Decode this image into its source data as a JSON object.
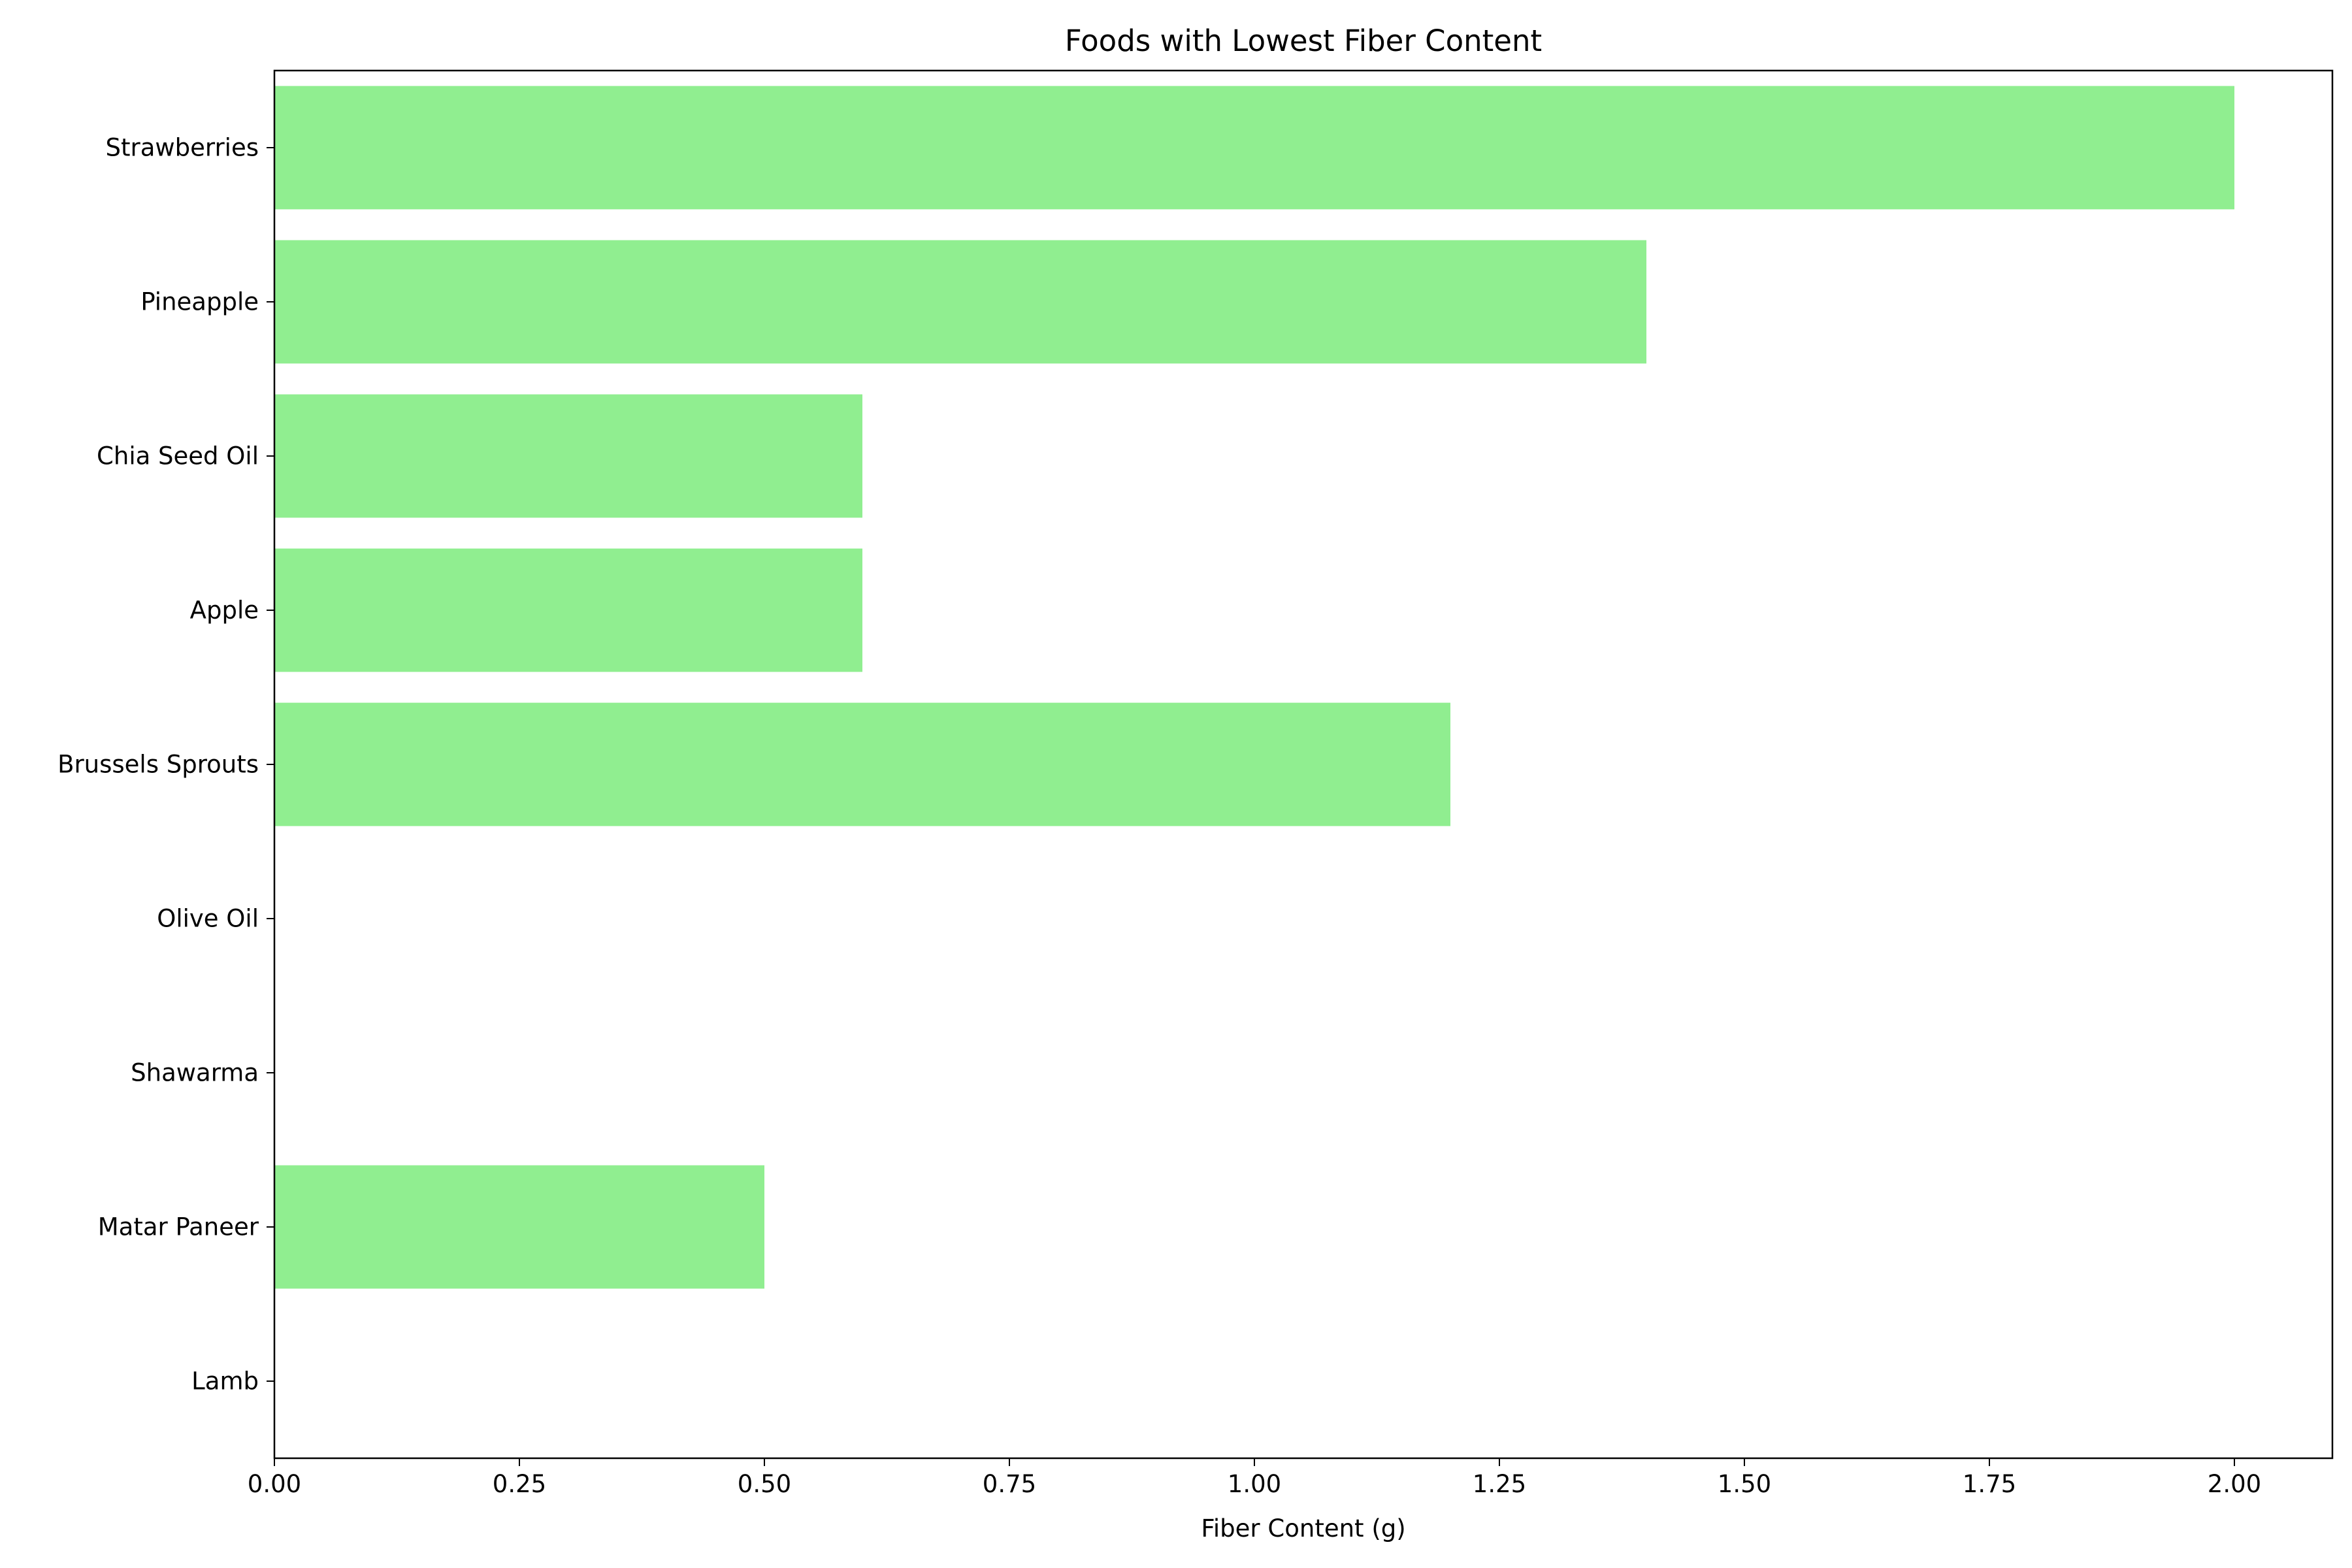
{
  "chart_data": {
    "type": "bar",
    "orientation": "horizontal",
    "title": "Foods with Lowest Fiber Content",
    "xlabel": "Fiber Content (g)",
    "ylabel": "",
    "categories": [
      "Strawberries",
      "Pineapple",
      "Chia Seed Oil",
      "Apple",
      "Brussels Sprouts",
      "Olive Oil",
      "Shawarma",
      "Matar Paneer",
      "Lamb"
    ],
    "values": [
      2.0,
      1.4,
      0.6,
      0.6,
      1.2,
      0.0,
      0.0,
      0.5,
      0.0
    ],
    "xlim": [
      0,
      2.1
    ],
    "xticks": [
      "0.00",
      "0.25",
      "0.50",
      "0.75",
      "1.00",
      "1.25",
      "1.50",
      "1.75",
      "2.00"
    ],
    "bar_color": "#90ee90",
    "grid": false,
    "legend": "none"
  }
}
